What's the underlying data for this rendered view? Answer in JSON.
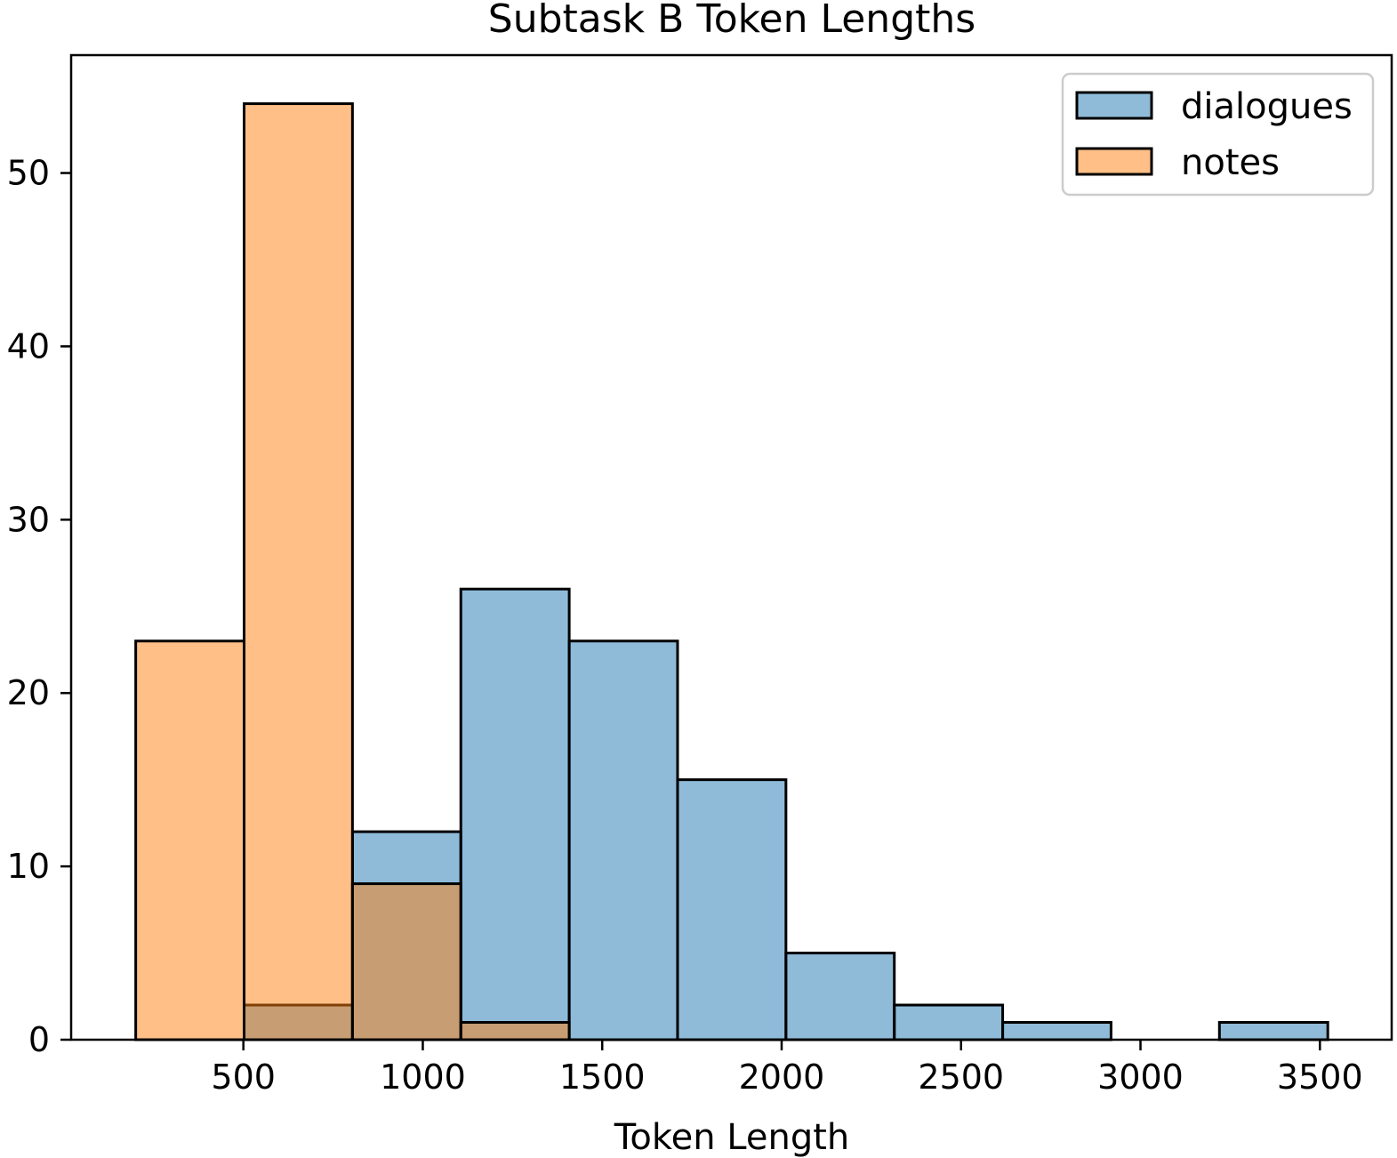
{
  "chart_data": {
    "type": "histogram",
    "title": "Subtask B Token Lengths",
    "xlabel": "Token Length",
    "ylabel": "",
    "xlim": [
      20,
      3700
    ],
    "ylim": [
      0,
      56.8
    ],
    "xticks": [
      500,
      1000,
      1500,
      2000,
      2500,
      3000,
      3500
    ],
    "yticks": [
      0,
      10,
      20,
      30,
      40,
      50
    ],
    "grid": false,
    "legend_position": "top-right",
    "bin_edges": [
      200,
      502,
      804,
      1106,
      1408,
      1710,
      2012,
      2314,
      2616,
      2918,
      3220,
      3522
    ],
    "series": [
      {
        "name": "dialogues",
        "color": "#1f77b4",
        "counts": [
          0,
          2,
          12,
          26,
          23,
          15,
          5,
          2,
          1,
          0,
          1
        ]
      },
      {
        "name": "notes",
        "color": "#ff7f0e",
        "counts": [
          23,
          54,
          9,
          1,
          0,
          0,
          0,
          0,
          0,
          0,
          0
        ]
      }
    ]
  }
}
